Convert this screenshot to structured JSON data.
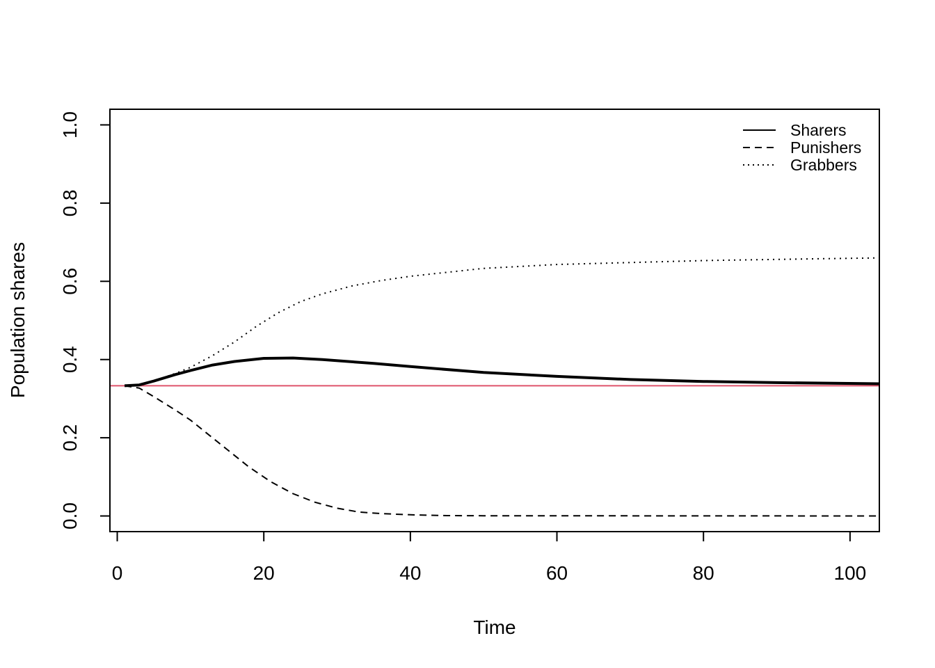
{
  "chart_data": {
    "type": "line",
    "xlabel": "Time",
    "ylabel": "Population shares",
    "xlim": [
      -1,
      104
    ],
    "ylim": [
      -0.04,
      1.04
    ],
    "xticks": [
      0,
      20,
      40,
      60,
      80,
      100
    ],
    "yticks": [
      0.0,
      0.2,
      0.4,
      0.6,
      0.8,
      1.0
    ],
    "ytick_labels": [
      "0.0",
      "0.2",
      "0.4",
      "0.6",
      "0.8",
      "1.0"
    ],
    "grid": false,
    "legend_position": "top-right",
    "series": [
      {
        "name": "Sharers",
        "style": "solid",
        "color": "#000000",
        "x": [
          1,
          3,
          5,
          8,
          10,
          13,
          16,
          20,
          24,
          28,
          35,
          40,
          50,
          60,
          70,
          80,
          90,
          104
        ],
        "y": [
          0.333,
          0.335,
          0.345,
          0.362,
          0.372,
          0.386,
          0.395,
          0.403,
          0.404,
          0.4,
          0.39,
          0.382,
          0.367,
          0.357,
          0.349,
          0.344,
          0.341,
          0.338
        ]
      },
      {
        "name": "Punishers",
        "style": "dashed",
        "color": "#000000",
        "x": [
          1,
          3,
          5,
          8,
          10,
          12,
          15,
          18,
          21,
          24,
          27,
          30,
          33,
          36,
          40,
          45,
          50,
          104
        ],
        "y": [
          0.333,
          0.327,
          0.305,
          0.27,
          0.245,
          0.215,
          0.17,
          0.125,
          0.087,
          0.057,
          0.035,
          0.02,
          0.01,
          0.006,
          0.003,
          0.001,
          0.0005,
          0.0
        ]
      },
      {
        "name": "Grabbers",
        "style": "dotted",
        "color": "#000000",
        "x": [
          1,
          3,
          5,
          8,
          10,
          13,
          16,
          19,
          22,
          25,
          28,
          32,
          36,
          40,
          50,
          60,
          70,
          80,
          90,
          104
        ],
        "y": [
          0.333,
          0.335,
          0.345,
          0.365,
          0.38,
          0.41,
          0.445,
          0.485,
          0.52,
          0.548,
          0.568,
          0.588,
          0.602,
          0.613,
          0.633,
          0.643,
          0.648,
          0.653,
          0.656,
          0.66
        ]
      }
    ],
    "reference_line": {
      "y": 0.333,
      "color": "#DF536B"
    }
  }
}
